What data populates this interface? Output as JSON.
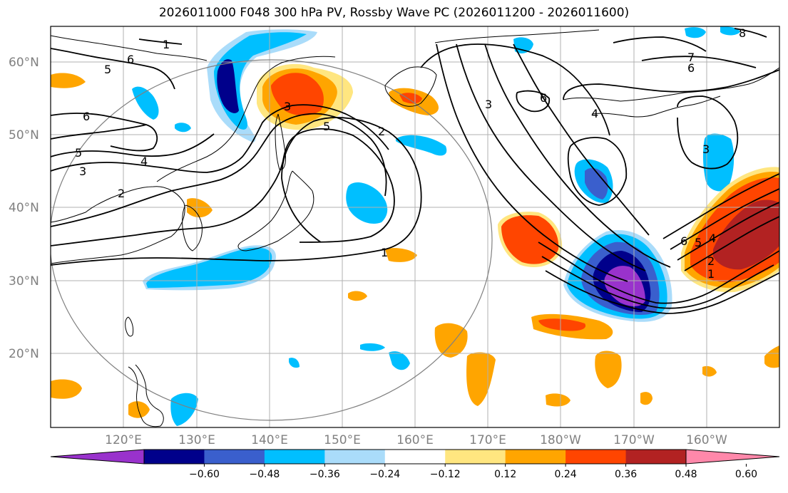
{
  "title": "2026011000 F048 300 hPa PV, Rossby Wave PC (2026011200 - 2026011600)",
  "lat_labels": [
    "60°N",
    "50°N",
    "40°N",
    "30°N",
    "20°N"
  ],
  "lon_labels": [
    "120°E",
    "130°E",
    "140°E",
    "150°E",
    "160°E",
    "170°E",
    "180°W",
    "170°W",
    "160°W"
  ],
  "colorbar": {
    "ticks": [
      "−0.60",
      "−0.48",
      "−0.36",
      "−0.24",
      "−0.12",
      "0.12",
      "0.24",
      "0.36",
      "0.48",
      "0.60"
    ],
    "colors": [
      "#9932cc",
      "#00008b",
      "#3a5fcd",
      "#00bfff",
      "#aadcfa",
      "#ffffff",
      "#ffe680",
      "#ffa500",
      "#ff4500",
      "#b22222",
      "#ff88aa"
    ]
  },
  "contour_labels": [
    "1",
    "6",
    "5",
    "6",
    "5",
    "3",
    "4",
    "2",
    "5",
    "3",
    "2",
    "1",
    "3",
    "6",
    "4",
    "3",
    "8",
    "7",
    "6",
    "6",
    "5",
    "4",
    "2",
    "1"
  ],
  "colors": {
    "grid": "#b0b0b0",
    "coast": "#000000",
    "contour": "#000000",
    "circle": "#808080"
  }
}
